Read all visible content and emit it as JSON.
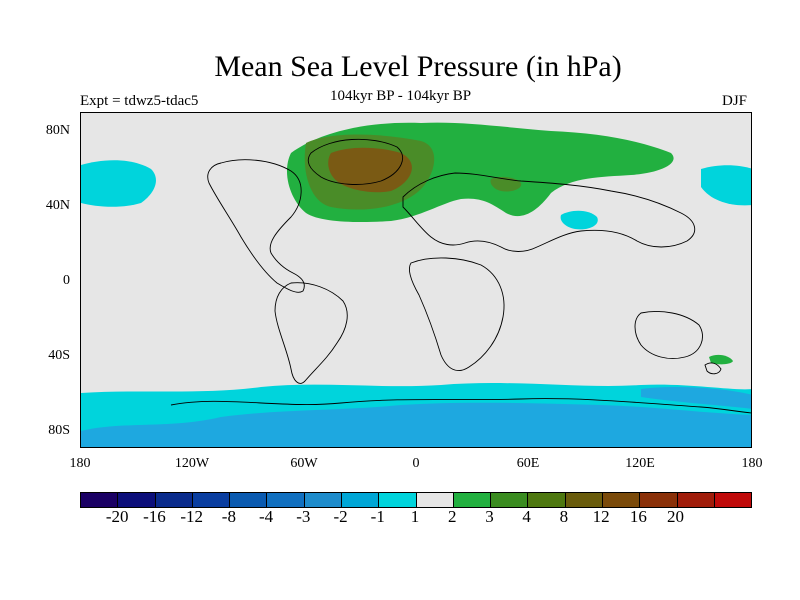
{
  "title": "Mean Sea Level Pressure (in hPa)",
  "subtitle": "104kyr BP - 104kyr BP",
  "left_label": "Expt = tdwz5-tdac5",
  "right_label": "DJF",
  "map": {
    "projection": "cylindrical equidistant",
    "lon_range": [
      -180,
      180
    ],
    "lat_range": [
      -90,
      90
    ],
    "background_color": "#e6e6e6",
    "coastline_color": "#000000",
    "fields": [
      {
        "level": "2",
        "color": "#22b040",
        "region": "Northern Hemisphere high latitudes (North Atlantic / Eurasia)"
      },
      {
        "level": "3",
        "color": "#4a8c28",
        "region": "North Atlantic / Greenland"
      },
      {
        "level": "4",
        "color": "#7a5a14",
        "region": "Greenland / Norwegian Sea centre"
      },
      {
        "level": "-2",
        "color": "#00d4dc",
        "region": "North Pacific, Southern Ocean, Central Asia"
      },
      {
        "level": "-3",
        "color": "#1ea8e0",
        "region": "Southern Ocean / Antarctica"
      }
    ]
  },
  "y_axis": {
    "ticks": [
      "80N",
      "40N",
      "0",
      "40S",
      "80S"
    ]
  },
  "x_axis": {
    "ticks": [
      "180",
      "120W",
      "60W",
      "0",
      "60E",
      "120E",
      "180"
    ]
  },
  "colorbar": {
    "colors": [
      "#1a0064",
      "#0c0f7a",
      "#0a2b8c",
      "#0a3ea0",
      "#0a5ab0",
      "#1170c0",
      "#1e8ccc",
      "#00a6d6",
      "#00d4dc",
      "#e6e6e6",
      "#22b040",
      "#3a8c20",
      "#4e7810",
      "#6a5c0c",
      "#7a4a0a",
      "#8a3008",
      "#a01c0a",
      "#c00a0a"
    ],
    "labels": [
      "-20",
      "-16",
      "-12",
      "-8",
      "-4",
      "-3",
      "-2",
      "-1",
      "1",
      "2",
      "3",
      "4",
      "8",
      "12",
      "16",
      "20"
    ]
  }
}
